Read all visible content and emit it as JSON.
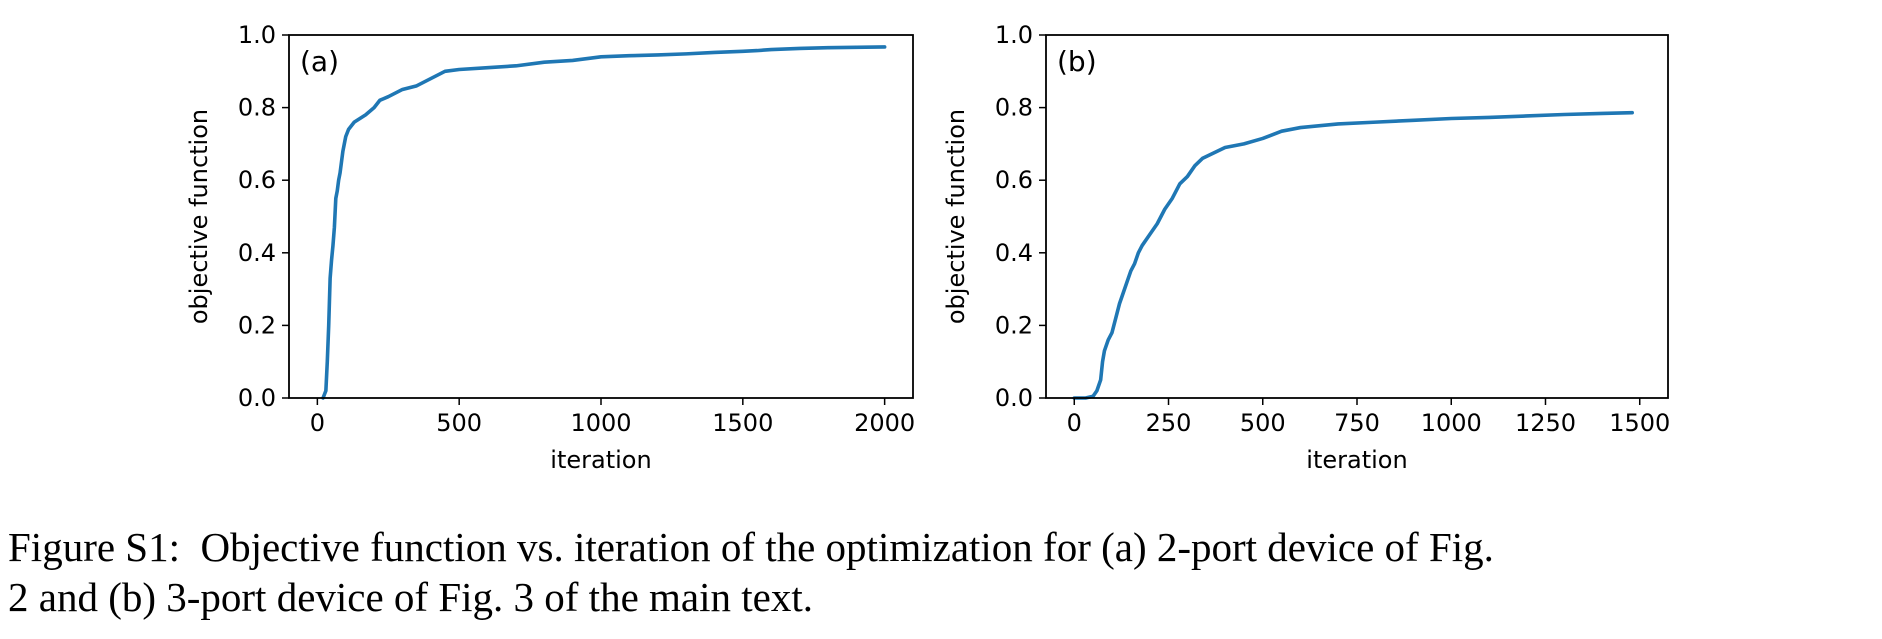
{
  "caption": "Figure S1:  Objective function vs. iteration of the optimization for (a) 2-port device of Fig.\n2 and (b) 3-port device of Fig. 3 of the main text.",
  "colors": {
    "line": "#1f77b4",
    "axes": "#000000",
    "background": "#ffffff"
  },
  "chart_data": [
    {
      "type": "line",
      "panel_label": "(a)",
      "xlabel": "iteration",
      "ylabel": "objective function",
      "xlim": [
        -100,
        2100
      ],
      "ylim": [
        0.0,
        1.0
      ],
      "xticks": [
        0,
        500,
        1000,
        1500,
        2000
      ],
      "xtick_labels": [
        "0",
        "500",
        "1000",
        "1500",
        "2000"
      ],
      "yticks": [
        0.0,
        0.2,
        0.4,
        0.6,
        0.8,
        1.0
      ],
      "ytick_labels": [
        "0.0",
        "0.2",
        "0.4",
        "0.6",
        "0.8",
        "1.0"
      ],
      "grid": false,
      "series": [
        {
          "x": [
            20,
            30,
            35,
            40,
            45,
            50,
            55,
            60,
            65,
            70,
            75,
            80,
            85,
            90,
            95,
            100,
            110,
            120,
            130,
            150,
            170,
            200,
            220,
            250,
            300,
            350,
            400,
            450,
            500,
            600,
            700,
            800,
            900,
            1000,
            1100,
            1200,
            1300,
            1400,
            1500,
            1550,
            1600,
            1700,
            1800,
            1900,
            2000
          ],
          "y": [
            0.0,
            0.02,
            0.1,
            0.2,
            0.33,
            0.38,
            0.42,
            0.47,
            0.55,
            0.57,
            0.6,
            0.62,
            0.65,
            0.68,
            0.7,
            0.72,
            0.74,
            0.75,
            0.76,
            0.77,
            0.78,
            0.8,
            0.82,
            0.83,
            0.85,
            0.86,
            0.88,
            0.9,
            0.905,
            0.91,
            0.915,
            0.925,
            0.93,
            0.94,
            0.943,
            0.945,
            0.948,
            0.952,
            0.955,
            0.957,
            0.96,
            0.963,
            0.965,
            0.966,
            0.967
          ]
        }
      ]
    },
    {
      "type": "line",
      "panel_label": "(b)",
      "xlabel": "iteration",
      "ylabel": "objective function",
      "xlim": [
        -75,
        1575
      ],
      "ylim": [
        0.0,
        1.0
      ],
      "xticks": [
        0,
        250,
        500,
        750,
        1000,
        1250,
        1500
      ],
      "xtick_labels": [
        "0",
        "250",
        "500",
        "750",
        "1000",
        "1250",
        "1500"
      ],
      "yticks": [
        0.0,
        0.2,
        0.4,
        0.6,
        0.8,
        1.0
      ],
      "ytick_labels": [
        "0.0",
        "0.2",
        "0.4",
        "0.6",
        "0.8",
        "1.0"
      ],
      "grid": false,
      "series": [
        {
          "x": [
            0,
            30,
            50,
            60,
            70,
            75,
            80,
            90,
            100,
            110,
            120,
            130,
            140,
            150,
            160,
            170,
            180,
            200,
            220,
            240,
            260,
            280,
            300,
            320,
            340,
            360,
            380,
            400,
            450,
            500,
            550,
            600,
            700,
            800,
            900,
            1000,
            1100,
            1200,
            1300,
            1400,
            1480
          ],
          "y": [
            0.0,
            0.0,
            0.005,
            0.02,
            0.05,
            0.1,
            0.13,
            0.16,
            0.18,
            0.22,
            0.26,
            0.29,
            0.32,
            0.35,
            0.37,
            0.4,
            0.42,
            0.45,
            0.48,
            0.52,
            0.55,
            0.59,
            0.61,
            0.64,
            0.66,
            0.67,
            0.68,
            0.69,
            0.7,
            0.715,
            0.735,
            0.745,
            0.755,
            0.76,
            0.765,
            0.77,
            0.773,
            0.777,
            0.781,
            0.784,
            0.786
          ]
        }
      ]
    }
  ]
}
